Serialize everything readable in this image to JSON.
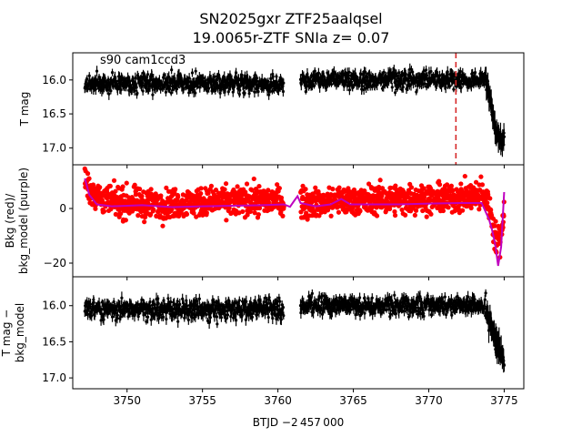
{
  "figure": {
    "title_line1": "SN2025gxr  ZTF25aalqsel",
    "title_line2": "19.0065r-ZTF SNIa z= 0.07",
    "annotation": "s90 cam1ccd3",
    "xlabel": "BTJD −2 457 000"
  },
  "colors": {
    "black": "#000000",
    "red": "#ff0000",
    "purple": "#bf00bf",
    "dashed_line": "#d62728"
  },
  "chart_data": [
    {
      "type": "scatter",
      "ylabel": "T mag",
      "y_inverted": true,
      "xlim": [
        3746.4,
        3776.3
      ],
      "ylim": [
        17.25,
        15.6
      ],
      "xticks": [
        3750,
        3755,
        3760,
        3765,
        3770,
        3775
      ],
      "yticks": [
        16.0,
        16.5,
        17.0
      ],
      "ytick_labels": [
        "16.0",
        "16.5",
        "17.0"
      ],
      "segments": [
        {
          "x_start": 3747.2,
          "x_end": 3760.4,
          "y_center": 16.05,
          "y_spread": 0.13
        },
        {
          "x_start": 3761.5,
          "x_end": 3773.8,
          "y_center": 16.0,
          "y_spread": 0.12
        }
      ],
      "decline": [
        [
          3773.8,
          16.05
        ],
        [
          3774.0,
          16.2
        ],
        [
          3774.2,
          16.45
        ],
        [
          3774.4,
          16.7
        ],
        [
          3774.6,
          16.85
        ],
        [
          3774.8,
          16.9
        ],
        [
          3775.0,
          16.85
        ]
      ],
      "vline_x": 3771.8
    },
    {
      "type": "line",
      "ylabel_line1": "Bkg (red)/",
      "ylabel_line2": "bkg_model (purple)",
      "xlim": [
        3746.4,
        3776.3
      ],
      "ylim": [
        -25,
        16
      ],
      "yticks": [
        0,
        -20
      ],
      "ytick_labels": [
        "0",
        "−20"
      ],
      "series": [
        {
          "color": "red",
          "points": [
            [
              3747.2,
              11
            ],
            [
              3747.6,
              6
            ],
            [
              3748.5,
              3
            ],
            [
              3750,
              2
            ],
            [
              3752,
              1.5
            ],
            [
              3754,
              2
            ],
            [
              3756,
              2.5
            ],
            [
              3758,
              3
            ],
            [
              3760,
              3
            ],
            [
              3760.4,
              2
            ],
            [
              3761.5,
              2
            ],
            [
              3762,
              2
            ],
            [
              3763,
              2
            ],
            [
              3764,
              3
            ],
            [
              3766,
              3
            ],
            [
              3768,
              3.5
            ],
            [
              3770,
              3.5
            ],
            [
              3772,
              4
            ],
            [
              3773.5,
              5
            ],
            [
              3774,
              2
            ],
            [
              3774.2,
              -5
            ],
            [
              3774.5,
              -12
            ],
            [
              3774.8,
              -10
            ],
            [
              3775.0,
              1
            ]
          ],
          "spread": 5
        },
        {
          "color": "purple",
          "points": [
            [
              3747.2,
              11
            ],
            [
              3747.5,
              5
            ],
            [
              3748,
              1.5
            ],
            [
              3749,
              0.8
            ],
            [
              3751,
              1.2
            ],
            [
              3753,
              0.5
            ],
            [
              3755,
              0.8
            ],
            [
              3757,
              1.0
            ],
            [
              3759,
              1.2
            ],
            [
              3760.4,
              1.5
            ],
            [
              3760.8,
              0.6
            ],
            [
              3761.1,
              3
            ],
            [
              3761.3,
              4.5
            ],
            [
              3761.5,
              2
            ],
            [
              3762.5,
              0.8
            ],
            [
              3763.5,
              1.5
            ],
            [
              3764.2,
              3.5
            ],
            [
              3764.8,
              1.5
            ],
            [
              3766,
              1.5
            ],
            [
              3768,
              1.5
            ],
            [
              3770,
              1.8
            ],
            [
              3772,
              2
            ],
            [
              3773.5,
              2
            ],
            [
              3774,
              -4
            ],
            [
              3774.2,
              -8
            ],
            [
              3774.4,
              -13
            ],
            [
              3774.6,
              -21
            ],
            [
              3774.8,
              -14
            ],
            [
              3775.0,
              6
            ]
          ]
        }
      ]
    },
    {
      "type": "scatter",
      "ylabel_line1": "T mag −",
      "ylabel_line2": "bkg_model",
      "y_inverted": true,
      "xlim": [
        3746.4,
        3776.3
      ],
      "ylim": [
        17.15,
        15.6
      ],
      "xticks": [
        3750,
        3755,
        3760,
        3765,
        3770,
        3775
      ],
      "xtick_labels": [
        "3750",
        "3755",
        "3760",
        "3765",
        "3770",
        "3775"
      ],
      "yticks": [
        16.0,
        16.5,
        17.0
      ],
      "ytick_labels": [
        "16.0",
        "16.5",
        "17.0"
      ],
      "segments": [
        {
          "x_start": 3747.2,
          "x_end": 3760.4,
          "y_center": 16.05,
          "y_spread": 0.13
        },
        {
          "x_start": 3761.5,
          "x_end": 3773.8,
          "y_center": 16.0,
          "y_spread": 0.12
        }
      ],
      "decline": [
        [
          3773.8,
          16.1
        ],
        [
          3774.0,
          16.2
        ],
        [
          3774.2,
          16.35
        ],
        [
          3774.4,
          16.45
        ],
        [
          3774.6,
          16.55
        ],
        [
          3774.8,
          16.65
        ],
        [
          3775.0,
          16.8
        ]
      ]
    }
  ]
}
